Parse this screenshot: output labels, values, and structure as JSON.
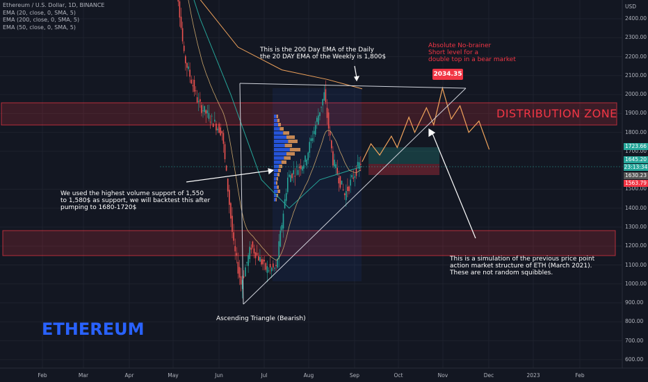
{
  "legend": {
    "symbol": "Ethereum / U.S. Dollar, 1D, BINANCE",
    "ema1": "EMA (20, close, 0, SMA, 5)",
    "ema2": "EMA (200, close, 0, SMA, 5)",
    "ema3": "EMA (50, close, 0, SMA, 5)"
  },
  "annotations": {
    "ema_note": "This is the 200 Day EMA of the Daily\nthe 20 DAY EMA of the Weekly is 1,800$",
    "short_note": "Absolute No-brainer\nShort level for a\ndouble top in a bear market",
    "volume_note": "We used the highest volume support of 1,550\nto 1,580$ as support, we will backtest this after\npumping to 1680-1720$",
    "simulation_note": "This is a simulation of the previous price point\naction market structure of ETH (March 2021).\nThese are not random squibbles.",
    "triangle_note": "Ascending Triangle (Bearish)",
    "distribution_label": "DISTRIBUTION ZONE",
    "peak_label": "2034.35",
    "title": "ETHEREUM"
  },
  "colors": {
    "background": "#131722",
    "zone_fill": "#f23645",
    "candle_up": "#26a69a",
    "candle_down": "#ef5350",
    "ema_orange": "#f0a35c",
    "ema_green": "#26a69a",
    "title_blue": "#2962ff"
  },
  "chart_data": {
    "type": "line",
    "title": "",
    "y_unit": "USD",
    "y_range": [
      520,
      2560
    ],
    "x_tick_labels": [
      "Feb",
      "Mar",
      "Apr",
      "May",
      "Jun",
      "Jul",
      "Aug",
      "Sep",
      "Oct",
      "Nov",
      "Dec",
      "2023",
      "Feb"
    ],
    "y_tick_labels": [
      "2400.00",
      "2300.00",
      "2200.00",
      "2100.00",
      "2000.00",
      "1900.00",
      "1800.00",
      "1700.00",
      "1500.00",
      "1400.00",
      "1300.00",
      "1200.00",
      "1100.00",
      "1000.00",
      "900.00",
      "800.00",
      "700.00",
      "600.00"
    ],
    "price_badges": [
      {
        "value": "1723.66",
        "color": "#26a69a"
      },
      {
        "value": "1645.20",
        "color": "#26a69a"
      },
      {
        "value": "23:13:34",
        "color": "#26a69a"
      },
      {
        "value": "1630.23",
        "color": "#555555"
      },
      {
        "value": "1563.79",
        "color": "#f23645"
      }
    ],
    "zones": [
      {
        "name": "distribution zone",
        "from": 1840,
        "to": 1960
      },
      {
        "name": "lower zone",
        "from": 1145,
        "to": 1285
      }
    ],
    "price_path": [
      {
        "date": "2022-05-01",
        "price": 2900
      },
      {
        "date": "2022-05-10",
        "price": 2200
      },
      {
        "date": "2022-05-20",
        "price": 1950
      },
      {
        "date": "2022-06-05",
        "price": 1800
      },
      {
        "date": "2022-06-13",
        "price": 1200
      },
      {
        "date": "2022-06-18",
        "price": 1000
      },
      {
        "date": "2022-06-25",
        "price": 1200
      },
      {
        "date": "2022-07-05",
        "price": 1080
      },
      {
        "date": "2022-07-12",
        "price": 1080
      },
      {
        "date": "2022-07-20",
        "price": 1560
      },
      {
        "date": "2022-08-01",
        "price": 1650
      },
      {
        "date": "2022-08-14",
        "price": 2000
      },
      {
        "date": "2022-08-20",
        "price": 1650
      },
      {
        "date": "2022-08-28",
        "price": 1470
      },
      {
        "date": "2022-09-05",
        "price": 1600
      },
      {
        "date": "2022-09-08",
        "price": 1645
      }
    ],
    "simulated_path": [
      {
        "date": "2022-09-08",
        "price": 1645
      },
      {
        "date": "2022-09-14",
        "price": 1740
      },
      {
        "date": "2022-09-20",
        "price": 1680
      },
      {
        "date": "2022-09-28",
        "price": 1780
      },
      {
        "date": "2022-10-02",
        "price": 1720
      },
      {
        "date": "2022-10-10",
        "price": 1880
      },
      {
        "date": "2022-10-14",
        "price": 1800
      },
      {
        "date": "2022-10-22",
        "price": 1930
      },
      {
        "date": "2022-10-27",
        "price": 1840
      },
      {
        "date": "2022-11-02",
        "price": 2034
      },
      {
        "date": "2022-11-08",
        "price": 1870
      },
      {
        "date": "2022-11-14",
        "price": 1940
      },
      {
        "date": "2022-11-20",
        "price": 1800
      },
      {
        "date": "2022-11-27",
        "price": 1860
      },
      {
        "date": "2022-12-04",
        "price": 1710
      }
    ],
    "ema_200": [
      {
        "date": "2022-04-01",
        "price": 2900
      },
      {
        "date": "2022-05-15",
        "price": 2550
      },
      {
        "date": "2022-06-15",
        "price": 2250
      },
      {
        "date": "2022-07-15",
        "price": 2130
      },
      {
        "date": "2022-08-15",
        "price": 2080
      },
      {
        "date": "2022-09-08",
        "price": 2030
      }
    ],
    "ema_50": [
      {
        "date": "2022-05-01",
        "price": 2850
      },
      {
        "date": "2022-05-20",
        "price": 2400
      },
      {
        "date": "2022-06-10",
        "price": 2000
      },
      {
        "date": "2022-07-01",
        "price": 1550
      },
      {
        "date": "2022-07-20",
        "price": 1400
      },
      {
        "date": "2022-08-10",
        "price": 1550
      },
      {
        "date": "2022-09-08",
        "price": 1620
      }
    ],
    "triangle": {
      "top": [
        {
          "date": "2022-06-15",
          "price": 2030
        },
        {
          "date": "2022-11-20",
          "price": 2030
        }
      ],
      "bottom": [
        {
          "date": "2022-06-18",
          "price": 900
        },
        {
          "date": "2022-11-20",
          "price": 2030
        }
      ]
    }
  }
}
